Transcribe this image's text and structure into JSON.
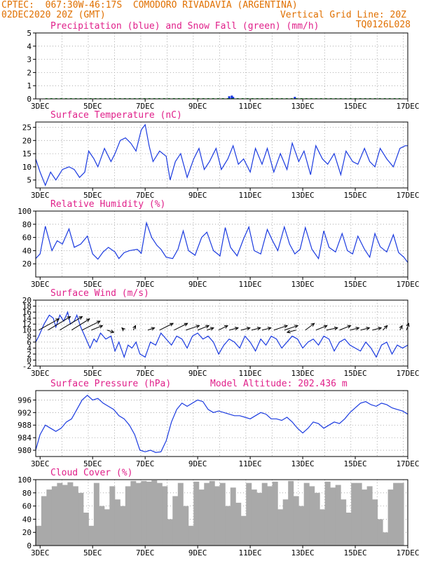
{
  "header": {
    "line1_left": "CPTEC:  067:30W-46:17S  COMODORO RIVADAVIA (ARGENTINA)",
    "line2_left": "02DEC2020 20Z (GMT)",
    "line2_right": "Vertical Grid Line: 20Z",
    "code": "TQ0126L028"
  },
  "colors": {
    "header": "#e07000",
    "title": "#e0208a",
    "precip": "#1030e0",
    "snow": "#10b020",
    "line": "#1a3ae0",
    "cloud": "#a9a9a9",
    "arrow": "#000000"
  },
  "x_axis": {
    "start_day": 2,
    "start_hour": 20,
    "end_day": 17,
    "tick_labels": [
      "3DEC",
      "5DEC",
      "7DEC",
      "9DEC",
      "11DEC",
      "13DEC",
      "15DEC",
      "17DEC"
    ]
  },
  "chart_data": [
    {
      "id": "precip",
      "type": "bar",
      "title": "Precipitation (blue) and Snow Fall (green) (mm/h)",
      "ylim": [
        0,
        5
      ],
      "yticks": [
        "0",
        "1",
        "2",
        "3",
        "4",
        "5"
      ],
      "grid": true,
      "series": [
        {
          "name": "Precipitation",
          "x": [
            10.2,
            10.3,
            10.35,
            12.7
          ],
          "values": [
            0.2,
            0.25,
            0.15,
            0.15
          ]
        },
        {
          "name": "Snow Fall",
          "x": [],
          "values": []
        }
      ]
    },
    {
      "id": "temp",
      "type": "line",
      "title": "Surface Temperature (nC)",
      "ylim": [
        2,
        27
      ],
      "yticks": [
        "5",
        "10",
        "15",
        "20",
        "25"
      ],
      "grid": true,
      "x": [
        2.83,
        3.0,
        3.2,
        3.4,
        3.6,
        3.85,
        4.1,
        4.3,
        4.5,
        4.7,
        4.85,
        5.05,
        5.2,
        5.45,
        5.7,
        5.85,
        6.05,
        6.25,
        6.45,
        6.65,
        6.85,
        7.0,
        7.15,
        7.3,
        7.55,
        7.8,
        7.95,
        8.15,
        8.35,
        8.6,
        8.85,
        9.05,
        9.25,
        9.45,
        9.7,
        9.9,
        10.15,
        10.35,
        10.55,
        10.75,
        11.0,
        11.2,
        11.45,
        11.65,
        11.9,
        12.15,
        12.4,
        12.6,
        12.85,
        13.05,
        13.3,
        13.5,
        13.75,
        13.95,
        14.2,
        14.45,
        14.65,
        14.9,
        15.1,
        15.35,
        15.55,
        15.75,
        15.95,
        16.2,
        16.45,
        16.7,
        16.9,
        17.0
      ],
      "values": [
        13,
        8,
        3,
        8,
        5,
        9,
        10,
        9,
        6,
        8,
        16,
        13,
        10,
        17,
        12,
        15,
        20,
        21,
        19,
        16,
        24,
        26,
        18,
        12,
        16,
        14,
        5,
        12,
        15,
        6,
        13,
        17,
        9,
        12,
        17,
        9,
        13,
        18,
        11,
        13,
        8,
        17,
        11,
        17,
        8,
        15,
        9,
        19,
        12,
        16,
        7,
        18,
        13,
        11,
        15,
        7,
        16,
        12,
        11,
        17,
        12,
        10,
        17,
        13,
        10,
        17,
        18,
        18
      ]
    },
    {
      "id": "rh",
      "type": "line",
      "title": "Relative Humidity (%)",
      "ylim": [
        0,
        100
      ],
      "yticks": [
        "20",
        "40",
        "60",
        "80",
        "100"
      ],
      "grid": true,
      "x": [
        2.83,
        3.0,
        3.2,
        3.45,
        3.65,
        3.85,
        4.1,
        4.3,
        4.55,
        4.8,
        5.0,
        5.2,
        5.4,
        5.6,
        5.85,
        6.0,
        6.2,
        6.4,
        6.7,
        6.85,
        7.05,
        7.25,
        7.45,
        7.6,
        7.8,
        8.05,
        8.25,
        8.45,
        8.65,
        8.9,
        9.15,
        9.35,
        9.6,
        9.85,
        10.05,
        10.25,
        10.5,
        10.75,
        10.95,
        11.15,
        11.4,
        11.65,
        11.85,
        12.05,
        12.3,
        12.5,
        12.7,
        12.9,
        13.1,
        13.35,
        13.6,
        13.8,
        14.0,
        14.25,
        14.5,
        14.7,
        14.9,
        15.1,
        15.35,
        15.55,
        15.75,
        15.95,
        16.2,
        16.45,
        16.65,
        16.85,
        17.0
      ],
      "values": [
        28,
        35,
        77,
        40,
        55,
        50,
        73,
        45,
        50,
        62,
        35,
        27,
        38,
        45,
        38,
        28,
        37,
        40,
        42,
        36,
        82,
        60,
        48,
        42,
        30,
        28,
        42,
        70,
        40,
        33,
        60,
        68,
        40,
        32,
        75,
        45,
        32,
        58,
        76,
        40,
        35,
        72,
        55,
        40,
        76,
        50,
        35,
        42,
        75,
        42,
        28,
        70,
        45,
        38,
        66,
        40,
        35,
        62,
        42,
        30,
        66,
        46,
        38,
        64,
        37,
        30,
        22
      ]
    },
    {
      "id": "wind",
      "type": "line",
      "title": "Surface Wind (m/s)",
      "ylim": [
        -2,
        20
      ],
      "yticks": [
        "-2",
        "0",
        "2",
        "4",
        "6",
        "8",
        "10",
        "12",
        "14",
        "16",
        "18",
        "20"
      ],
      "grid": true,
      "x": [
        2.83,
        2.95,
        3.15,
        3.35,
        3.5,
        3.6,
        3.75,
        3.9,
        4.05,
        4.15,
        4.3,
        4.4,
        4.55,
        4.7,
        4.9,
        5.05,
        5.15,
        5.3,
        5.5,
        5.7,
        5.85,
        6.0,
        6.2,
        6.35,
        6.5,
        6.65,
        6.8,
        7.0,
        7.2,
        7.4,
        7.6,
        7.8,
        8.0,
        8.2,
        8.4,
        8.6,
        8.8,
        9.0,
        9.2,
        9.4,
        9.6,
        9.8,
        10.0,
        10.2,
        10.4,
        10.6,
        10.8,
        11.0,
        11.2,
        11.4,
        11.6,
        11.8,
        12.0,
        12.2,
        12.4,
        12.6,
        12.8,
        13.0,
        13.2,
        13.4,
        13.6,
        13.8,
        14.0,
        14.2,
        14.4,
        14.6,
        14.8,
        15.0,
        15.2,
        15.4,
        15.6,
        15.8,
        16.0,
        16.2,
        16.4,
        16.6,
        16.8,
        17.0
      ],
      "values": [
        6,
        8,
        12,
        15,
        14,
        11,
        15,
        13,
        16,
        12,
        13,
        15,
        11,
        8,
        4,
        7,
        6,
        9,
        7,
        8,
        3,
        6,
        1,
        5,
        4,
        6,
        2,
        1,
        6,
        5,
        9,
        7,
        5,
        8,
        7,
        4,
        8,
        9,
        7,
        8,
        6,
        2,
        5,
        7,
        6,
        4,
        8,
        6,
        3,
        7,
        5,
        8,
        7,
        4,
        6,
        8,
        7,
        4,
        6,
        7,
        5,
        8,
        7,
        3,
        6,
        7,
        5,
        4,
        3,
        6,
        4,
        1,
        5,
        6,
        2,
        5,
        4,
        5
      ],
      "barbs": [
        {
          "x": 2.95,
          "u": 9,
          "v": 5
        },
        {
          "x": 3.3,
          "u": 10,
          "v": 6
        },
        {
          "x": 3.75,
          "u": 10,
          "v": 6
        },
        {
          "x": 4.2,
          "u": 8,
          "v": 5
        },
        {
          "x": 4.6,
          "u": 8,
          "v": 4
        },
        {
          "x": 4.95,
          "u": 5,
          "v": 2
        },
        {
          "x": 5.55,
          "u": 3,
          "v": -1
        },
        {
          "x": 6.2,
          "u": -1,
          "v": 1
        },
        {
          "x": 6.55,
          "u": 1,
          "v": 2
        },
        {
          "x": 7.1,
          "u": 3,
          "v": 1
        },
        {
          "x": 7.55,
          "u": 6,
          "v": 3
        },
        {
          "x": 8.1,
          "u": 6,
          "v": 3
        },
        {
          "x": 8.55,
          "u": 6,
          "v": 2
        },
        {
          "x": 9.0,
          "u": 5,
          "v": 2
        },
        {
          "x": 9.35,
          "u": 3,
          "v": 1
        },
        {
          "x": 9.8,
          "u": 4,
          "v": 2
        },
        {
          "x": 10.2,
          "u": 4,
          "v": 1
        },
        {
          "x": 10.65,
          "u": 4,
          "v": 1
        },
        {
          "x": 11.05,
          "u": 4,
          "v": 1
        },
        {
          "x": 11.45,
          "u": 4,
          "v": 1
        },
        {
          "x": 11.9,
          "u": 6,
          "v": 2
        },
        {
          "x": 12.3,
          "u": 6,
          "v": 2
        },
        {
          "x": 12.75,
          "u": -4,
          "v": -1
        },
        {
          "x": 13.1,
          "u": 4,
          "v": 3
        },
        {
          "x": 13.5,
          "u": 5,
          "v": 2
        },
        {
          "x": 13.9,
          "u": 5,
          "v": 1
        },
        {
          "x": 14.4,
          "u": 5,
          "v": 2
        },
        {
          "x": 14.8,
          "u": 4,
          "v": 1
        },
        {
          "x": 15.2,
          "u": 4,
          "v": 1
        },
        {
          "x": 15.65,
          "u": 4,
          "v": 1
        },
        {
          "x": 16.05,
          "u": 2,
          "v": 2
        },
        {
          "x": 16.7,
          "u": 1,
          "v": 2
        },
        {
          "x": 16.95,
          "u": 1,
          "v": 3
        }
      ]
    },
    {
      "id": "pres",
      "type": "line",
      "title": "Surface Pressure (hPa)",
      "subtitle": "Model Altitude: 202.436 m",
      "ylim": [
        978,
        999
      ],
      "yticks": [
        "980",
        "984",
        "988",
        "992",
        "996"
      ],
      "grid": true,
      "x": [
        2.83,
        3.0,
        3.2,
        3.4,
        3.6,
        3.8,
        4.0,
        4.2,
        4.4,
        4.6,
        4.8,
        5.0,
        5.2,
        5.4,
        5.6,
        5.8,
        6.0,
        6.2,
        6.4,
        6.6,
        6.8,
        7.0,
        7.2,
        7.4,
        7.6,
        7.8,
        8.0,
        8.2,
        8.4,
        8.6,
        8.8,
        9.0,
        9.2,
        9.4,
        9.6,
        9.8,
        10.0,
        10.2,
        10.4,
        10.6,
        10.8,
        11.0,
        11.2,
        11.4,
        11.6,
        11.8,
        12.0,
        12.2,
        12.4,
        12.6,
        12.8,
        13.0,
        13.2,
        13.4,
        13.6,
        13.8,
        14.0,
        14.2,
        14.4,
        14.6,
        14.8,
        15.0,
        15.2,
        15.4,
        15.6,
        15.8,
        16.0,
        16.2,
        16.4,
        16.6,
        16.8,
        17.0
      ],
      "values": [
        980,
        985,
        988,
        987,
        986,
        987,
        989,
        990,
        993,
        996,
        997.5,
        996,
        996.5,
        995,
        994,
        993,
        991,
        990,
        988,
        985,
        980,
        979.5,
        980,
        979.3,
        979.5,
        983,
        989,
        993,
        995,
        994,
        995,
        996,
        995.5,
        993,
        992,
        992.5,
        992,
        991.5,
        991,
        991,
        990.5,
        990,
        991,
        992,
        991.5,
        990,
        990,
        989.5,
        990.5,
        989,
        987,
        985.5,
        987,
        989,
        988.5,
        987,
        988,
        989,
        988.5,
        990,
        992,
        993.5,
        995,
        995.5,
        994.5,
        994,
        995,
        994.5,
        993.5,
        993,
        992.5,
        991.5
      ]
    },
    {
      "id": "cloud",
      "type": "bar",
      "title": "Cloud Cover (%)",
      "ylim": [
        0,
        100
      ],
      "yticks": [
        "0",
        "20",
        "40",
        "60",
        "80",
        "100"
      ],
      "grid": true,
      "x": [
        2.95,
        3.15,
        3.35,
        3.55,
        3.75,
        3.95,
        4.15,
        4.35,
        4.55,
        4.75,
        4.95,
        5.15,
        5.35,
        5.55,
        5.75,
        5.95,
        6.15,
        6.35,
        6.55,
        6.75,
        6.95,
        7.15,
        7.35,
        7.55,
        7.75,
        7.95,
        8.15,
        8.35,
        8.55,
        8.75,
        8.95,
        9.15,
        9.35,
        9.55,
        9.75,
        9.95,
        10.15,
        10.35,
        10.55,
        10.75,
        10.95,
        11.15,
        11.35,
        11.55,
        11.75,
        11.95,
        12.15,
        12.35,
        12.55,
        12.75,
        12.95,
        13.15,
        13.35,
        13.55,
        13.75,
        13.95,
        14.15,
        14.35,
        14.55,
        14.75,
        14.95,
        15.15,
        15.35,
        15.55,
        15.75,
        15.95,
        16.15,
        16.35,
        16.55,
        16.75
      ],
      "values": [
        30,
        75,
        85,
        90,
        95,
        92,
        96,
        90,
        80,
        50,
        30,
        95,
        60,
        55,
        90,
        70,
        60,
        90,
        98,
        95,
        98,
        97,
        99,
        95,
        90,
        40,
        75,
        95,
        60,
        30,
        97,
        85,
        95,
        98,
        90,
        95,
        60,
        88,
        65,
        45,
        95,
        85,
        80,
        95,
        90,
        97,
        55,
        70,
        98,
        75,
        60,
        95,
        90,
        80,
        55,
        97,
        88,
        92,
        70,
        50,
        95,
        95,
        85,
        90,
        70,
        40,
        20,
        85,
        95,
        95
      ]
    }
  ]
}
